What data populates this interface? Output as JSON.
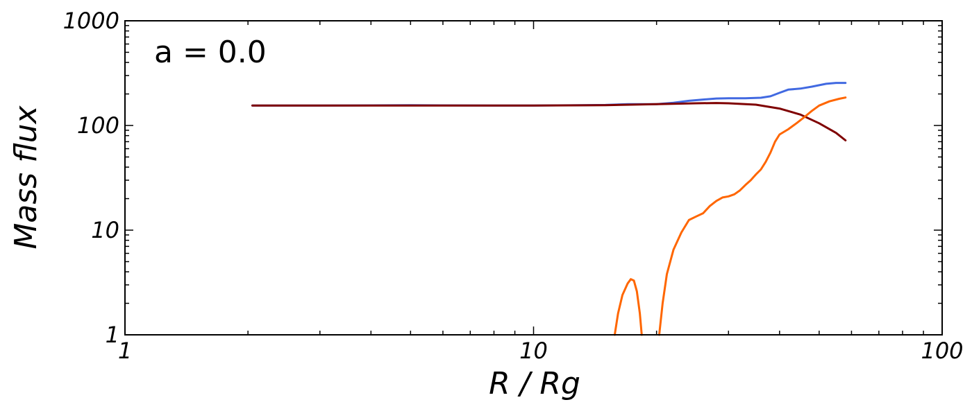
{
  "chart_data": {
    "type": "line",
    "xlabel": "R / Rg",
    "ylabel": "Mass flux",
    "x_scale": "log",
    "y_scale": "log",
    "xlim": [
      1,
      100
    ],
    "ylim": [
      1,
      1000
    ],
    "x_ticks": [
      "1",
      "10",
      "100"
    ],
    "y_ticks": [
      "1",
      "10",
      "100",
      "1000"
    ],
    "grid": false,
    "annotation": "a = 0.0",
    "series": [
      {
        "color": "#4169e1",
        "points": [
          [
            2.05,
            155
          ],
          [
            3,
            155
          ],
          [
            5,
            156
          ],
          [
            8,
            155
          ],
          [
            10,
            155
          ],
          [
            13,
            156
          ],
          [
            15,
            157
          ],
          [
            17,
            160
          ],
          [
            20,
            160
          ],
          [
            22,
            165
          ],
          [
            24,
            172
          ],
          [
            26,
            177
          ],
          [
            28,
            181
          ],
          [
            30,
            182
          ],
          [
            33,
            182
          ],
          [
            36,
            184
          ],
          [
            38,
            190
          ],
          [
            40,
            205
          ],
          [
            42,
            220
          ],
          [
            45,
            225
          ],
          [
            48,
            235
          ],
          [
            52,
            250
          ],
          [
            55,
            255
          ],
          [
            58,
            255
          ]
        ]
      },
      {
        "color": "#7f0000",
        "points": [
          [
            2.05,
            155
          ],
          [
            5,
            155
          ],
          [
            10,
            155
          ],
          [
            15,
            156
          ],
          [
            20,
            160
          ],
          [
            25,
            163
          ],
          [
            28,
            164
          ],
          [
            30,
            163
          ],
          [
            35,
            158
          ],
          [
            40,
            145
          ],
          [
            45,
            127
          ],
          [
            50,
            105
          ],
          [
            55,
            85
          ],
          [
            58,
            72
          ]
        ]
      },
      {
        "color": "#ff6600",
        "segments": [
          [
            [
              15.8,
              1
            ],
            [
              16.1,
              1.6
            ],
            [
              16.5,
              2.4
            ],
            [
              17,
              3.1
            ],
            [
              17.3,
              3.4
            ],
            [
              17.6,
              3.3
            ],
            [
              17.9,
              2.6
            ],
            [
              18.2,
              1.6
            ],
            [
              18.4,
              1
            ]
          ],
          [
            [
              20.3,
              1
            ],
            [
              20.7,
              2
            ],
            [
              21.2,
              3.8
            ],
            [
              22,
              6.5
            ],
            [
              23,
              9.5
            ],
            [
              24,
              12.5
            ],
            [
              25,
              13.5
            ],
            [
              26,
              14.5
            ],
            [
              27,
              17
            ],
            [
              28,
              19
            ],
            [
              29,
              20.5
            ],
            [
              30,
              21
            ],
            [
              31,
              22
            ],
            [
              32,
              24
            ],
            [
              33,
              27
            ],
            [
              34,
              30
            ],
            [
              35,
              34
            ],
            [
              36,
              38
            ],
            [
              37,
              45
            ],
            [
              38,
              55
            ],
            [
              39,
              70
            ],
            [
              40,
              82
            ],
            [
              42,
              92
            ],
            [
              44,
              105
            ],
            [
              46,
              120
            ],
            [
              48,
              138
            ],
            [
              50,
              155
            ],
            [
              53,
              170
            ],
            [
              56,
              180
            ],
            [
              58,
              185
            ]
          ]
        ]
      }
    ]
  }
}
